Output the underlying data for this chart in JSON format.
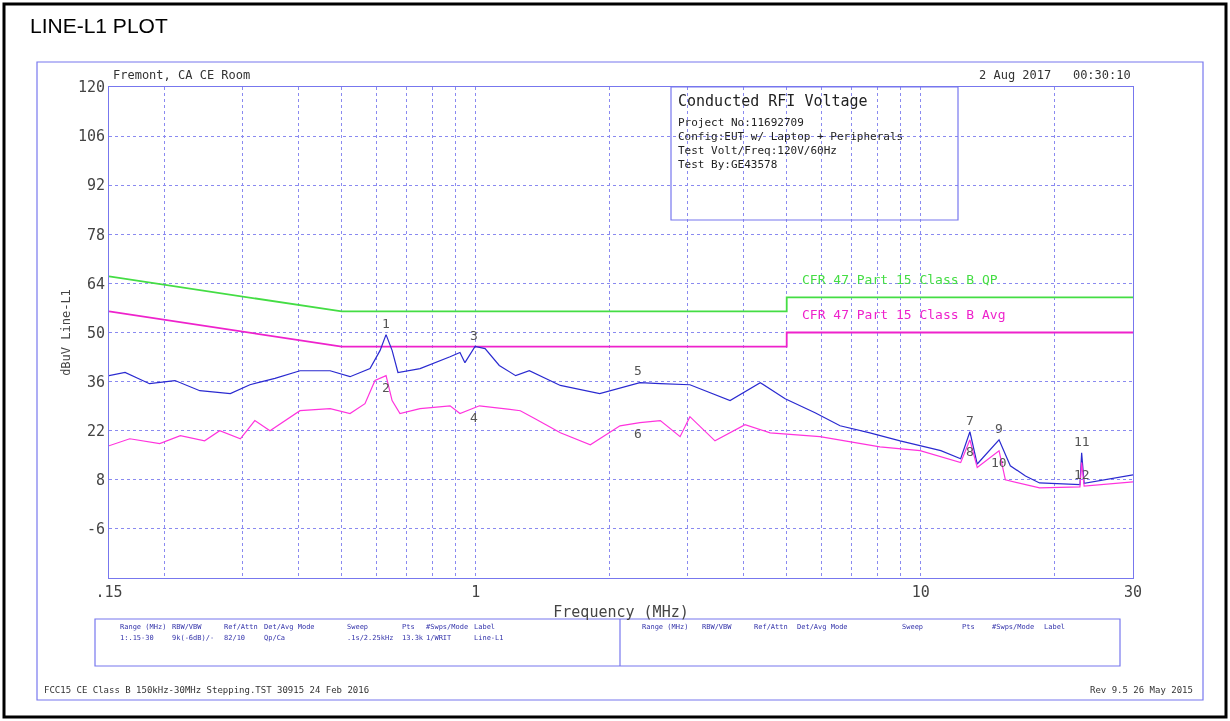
{
  "chart_data": {
    "type": "line",
    "title": "LINE-L1 PLOT",
    "xlabel": "Frequency (MHz)",
    "ylabel": "dBuV Line-L1",
    "log": "x",
    "xlim": [
      0.15,
      30
    ],
    "ylim": [
      -20,
      120
    ],
    "xticks": [
      {
        "value": 0.15,
        "label": ".15"
      },
      {
        "value": 0.2,
        "label": null
      },
      {
        "value": 0.3,
        "label": null
      },
      {
        "value": 0.4,
        "label": null
      },
      {
        "value": 0.5,
        "label": null
      },
      {
        "value": 0.6,
        "label": null
      },
      {
        "value": 0.7,
        "label": null
      },
      {
        "value": 0.8,
        "label": null
      },
      {
        "value": 0.9,
        "label": null
      },
      1,
      {
        "value": 2,
        "label": null
      },
      {
        "value": 3,
        "label": null
      },
      {
        "value": 4,
        "label": null
      },
      {
        "value": 5,
        "label": null
      },
      {
        "value": 6,
        "label": null
      },
      {
        "value": 7,
        "label": null
      },
      {
        "value": 8,
        "label": null
      },
      {
        "value": 9,
        "label": null
      },
      10,
      {
        "value": 20,
        "label": null
      },
      30
    ],
    "yticks": [
      -6,
      8,
      22,
      36,
      50,
      64,
      78,
      92,
      106,
      120
    ],
    "grid": true,
    "legend": false,
    "marker": "none",
    "line_style": "solid",
    "series": [
      {
        "name": "CFR 47 Part 15 Class B QP",
        "color": "#44dd44",
        "x": [
          0.15,
          0.5,
          5,
          5,
          30
        ],
        "values": [
          66,
          56,
          56,
          60,
          60
        ]
      },
      {
        "name": "CFR 47 Part 15 Class B Avg",
        "color": "#ee22cc",
        "x": [
          0.15,
          0.5,
          5,
          5,
          30
        ],
        "values": [
          56,
          46,
          46,
          50,
          50
        ]
      },
      {
        "color": "#2a2ad0",
        "x": [
          0.15,
          0.163,
          0.185,
          0.211,
          0.24,
          0.281,
          0.311,
          0.354,
          0.403,
          0.471,
          0.522,
          0.579,
          0.61,
          0.629,
          0.649,
          0.669,
          0.75,
          0.876,
          0.922,
          0.946,
          0.997,
          1.05,
          1.13,
          1.23,
          1.32,
          1.55,
          1.9,
          2.34,
          2.6,
          3.03,
          3.73,
          4.36,
          4.96,
          5.79,
          6.59,
          7.69,
          8.99,
          11.1,
          12.3,
          12.9,
          13.4,
          15.0,
          15.9,
          17.2,
          18.5,
          22.8,
          23.0,
          23.3,
          30
        ],
        "values": [
          37.7,
          38.6,
          35.4,
          36.3,
          33.4,
          32.6,
          35.1,
          36.9,
          39.1,
          39.1,
          37.4,
          39.7,
          44.9,
          49.4,
          44.9,
          38.6,
          39.7,
          43.1,
          44.3,
          41.4,
          46.0,
          45.4,
          40.6,
          37.7,
          39.1,
          34.9,
          32.6,
          35.7,
          35.4,
          35.1,
          30.6,
          35.7,
          31.1,
          27.1,
          23.4,
          21.4,
          19.1,
          16.3,
          14.0,
          21.7,
          12.5,
          19.4,
          12.0,
          9.1,
          7.1,
          6.6,
          15.7,
          7.0,
          9.4
        ]
      },
      {
        "color": "#ff33dd",
        "x": [
          0.15,
          0.167,
          0.195,
          0.217,
          0.246,
          0.266,
          0.296,
          0.319,
          0.345,
          0.403,
          0.471,
          0.522,
          0.564,
          0.594,
          0.629,
          0.649,
          0.676,
          0.75,
          0.876,
          0.922,
          1.02,
          1.26,
          1.36,
          1.55,
          1.81,
          2.11,
          2.34,
          2.6,
          2.88,
          3.03,
          3.45,
          4.03,
          4.59,
          5.94,
          8.1,
          9.97,
          12.3,
          12.9,
          13.4,
          15.0,
          15.5,
          18.5,
          22.8,
          23.0,
          23.3,
          30
        ],
        "values": [
          17.7,
          19.7,
          18.3,
          20.6,
          19.1,
          22.0,
          19.7,
          24.9,
          22.0,
          27.7,
          28.3,
          26.9,
          29.7,
          36.3,
          37.7,
          30.6,
          26.9,
          28.3,
          29.1,
          26.9,
          29.1,
          27.7,
          25.4,
          21.4,
          18.0,
          23.4,
          24.3,
          24.9,
          20.3,
          26.0,
          19.1,
          23.7,
          21.4,
          20.3,
          17.4,
          16.3,
          12.9,
          19.4,
          11.5,
          16.3,
          8.0,
          5.7,
          6.0,
          12.9,
          6.2,
          7.4
        ]
      }
    ],
    "annotations": [
      "Fremont, CA CE Room",
      "2 Aug 2017   00:30:10",
      "Conducted RFI Voltage",
      "Project No:11692709",
      "Config:EUT w/ Laptop + Peripherals",
      "Test Volt/Freq:120V/60Hz",
      "Test By:GE43578",
      "Range (MHz)",
      "RBW/VBW",
      "Ref/Attn",
      "Det/Avg Mode",
      "Sweep",
      "Pts",
      "#Swps/Mode",
      "Label",
      "1:.15-30",
      "9k(-6dB)/-",
      "82/10",
      "Qp/Ca",
      ".1s/2.25kHz",
      "13.3k",
      "1/WRIT",
      "Line-L1",
      "Range (MHz)",
      "RBW/VBW",
      "Ref/Attn",
      "Det/Avg Mode",
      "Sweep",
      "Pts",
      "#Swps/Mode",
      "Label",
      "FCC15 CE Class B 150kHz-30MHz Stepping.TST 30915 24 Feb 2016",
      "Rev 9.5 26 May 2015",
      {
        "text": "1",
        "x": 0.629,
        "y": 49.4
      },
      {
        "text": "2",
        "x": 0.629,
        "y": 37.7
      },
      {
        "text": "3",
        "x": 0.99,
        "y": 46.0
      },
      {
        "text": "4",
        "x": 0.99,
        "y": 29.1
      },
      {
        "text": "5",
        "x": 2.32,
        "y": 36.0
      },
      {
        "text": "6",
        "x": 2.32,
        "y": 24.4
      },
      {
        "text": "7",
        "x": 12.9,
        "y": 21.7
      },
      {
        "text": "8",
        "x": 12.9,
        "y": 19.4
      },
      {
        "text": "9",
        "x": 15.0,
        "y": 19.4
      },
      {
        "text": "10",
        "x": 15.0,
        "y": 16.3
      },
      {
        "text": "11",
        "x": 23.0,
        "y": 15.7
      },
      {
        "text": "12",
        "x": 23.0,
        "y": 12.9
      }
    ]
  }
}
